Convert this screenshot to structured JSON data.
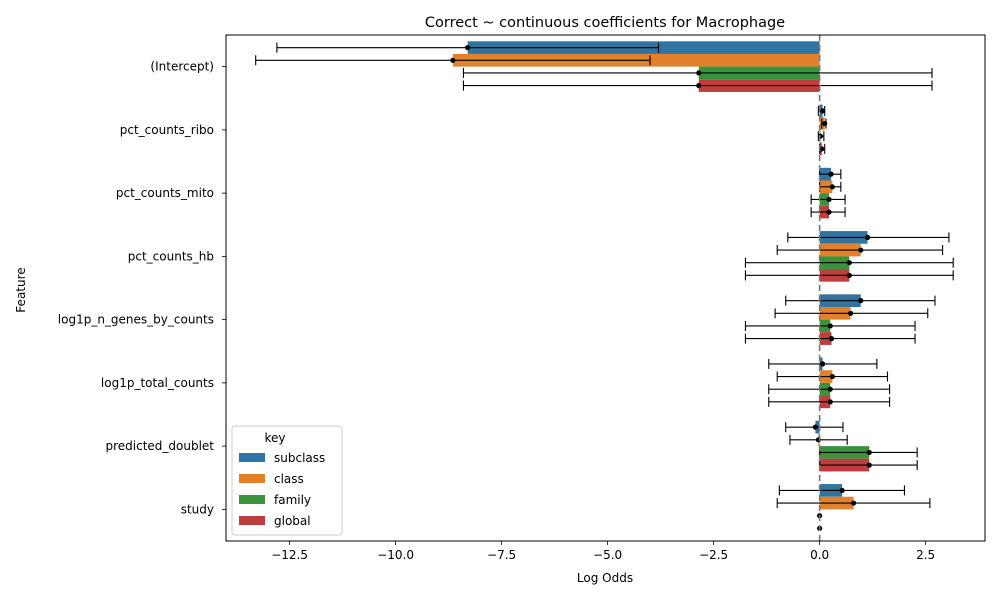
{
  "chart_data": {
    "type": "bar",
    "orientation": "horizontal",
    "title": "Correct ~ continuous coefficients for Macrophage",
    "xlabel": "Log Odds",
    "ylabel": "Feature",
    "xlim": [
      -14.0,
      3.9
    ],
    "xticks": [
      -12.5,
      -10.0,
      -7.5,
      -5.0,
      -2.5,
      0.0,
      2.5
    ],
    "xtick_labels": [
      "−12.5",
      "−10.0",
      "−7.5",
      "−5.0",
      "−2.5",
      "0.0",
      "2.5"
    ],
    "reference_line": 0,
    "categories": [
      "(Intercept)",
      "pct_counts_ribo",
      "pct_counts_mito",
      "pct_counts_hb",
      "log1p_n_genes_by_counts",
      "log1p_total_counts",
      "predicted_doublet",
      "study"
    ],
    "legend": {
      "title": "key",
      "placement": "lower-left"
    },
    "series": [
      {
        "name": "subclass",
        "color": "#3274a1",
        "values": [
          -8.3,
          0.07,
          0.27,
          1.13,
          0.97,
          0.07,
          -0.1,
          0.53
        ],
        "ci_low": [
          -12.8,
          -0.03,
          0.0,
          -0.75,
          -0.8,
          -1.2,
          -0.8,
          -0.95
        ],
        "ci_high": [
          -3.8,
          0.12,
          0.5,
          3.05,
          2.72,
          1.35,
          0.55,
          2.0
        ]
      },
      {
        "name": "class",
        "color": "#e1812c",
        "values": [
          -8.65,
          0.12,
          0.3,
          0.97,
          0.73,
          0.3,
          -0.03,
          0.8
        ],
        "ci_low": [
          -13.3,
          0.05,
          0.0,
          -1.0,
          -1.05,
          -1.0,
          -0.7,
          -1.0
        ],
        "ci_high": [
          -4.0,
          0.15,
          0.5,
          2.9,
          2.55,
          1.6,
          0.65,
          2.6
        ]
      },
      {
        "name": "family",
        "color": "#3a923a",
        "values": [
          -2.85,
          0.02,
          0.22,
          0.7,
          0.25,
          0.25,
          1.17,
          0.0
        ],
        "ci_low": [
          -8.4,
          -0.03,
          -0.2,
          -1.75,
          -1.75,
          -1.2,
          0.0,
          0.0
        ],
        "ci_high": [
          2.65,
          0.1,
          0.6,
          3.15,
          2.25,
          1.65,
          2.3,
          0.0
        ]
      },
      {
        "name": "global",
        "color": "#c03d3e",
        "values": [
          -2.85,
          0.05,
          0.22,
          0.7,
          0.28,
          0.25,
          1.17,
          0.0
        ],
        "ci_low": [
          -8.4,
          0.0,
          -0.2,
          -1.75,
          -1.75,
          -1.2,
          0.0,
          0.0
        ],
        "ci_high": [
          2.65,
          0.12,
          0.6,
          3.15,
          2.25,
          1.65,
          2.3,
          0.0
        ]
      }
    ]
  }
}
